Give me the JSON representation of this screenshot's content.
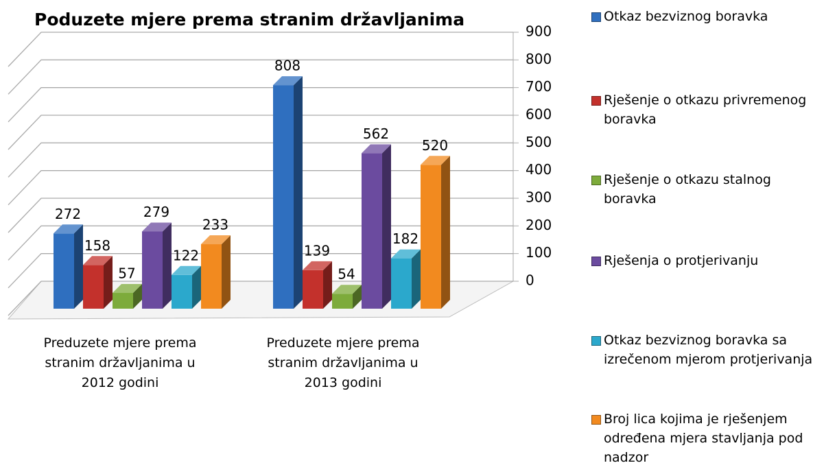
{
  "chart_data": {
    "type": "bar3d",
    "title": "Poduzete mjere prema stranim državljanima",
    "categories": [
      "Preduzete mjere prema stranim državljanima u 2012 godini",
      "Preduzete mjere prema stranim državljanima u 2013 godini"
    ],
    "series": [
      {
        "name": "Otkaz bezviznog boravka",
        "color": "#2f6fbf",
        "values": [
          272,
          808
        ]
      },
      {
        "name": "Rješenje o otkazu privremenog boravka",
        "color": "#c3312c",
        "values": [
          158,
          139
        ]
      },
      {
        "name": "Rješenje o otkazu stalnog boravka",
        "color": "#7dab3b",
        "values": [
          57,
          54
        ]
      },
      {
        "name": "Rješenja o protjerivanju",
        "color": "#6b4b9f",
        "values": [
          279,
          562
        ]
      },
      {
        "name": "Otkaz bezviznog boravka sa izrečenom mjerom protjerivanja",
        "color": "#2ba8cc",
        "values": [
          122,
          182
        ]
      },
      {
        "name": "Broj lica kojima je rješenjem određena mjera stavljanja pod nadzor",
        "color": "#f28a1f",
        "values": [
          233,
          520
        ]
      }
    ],
    "ylim": [
      0,
      900
    ],
    "yticks": [
      0,
      100,
      200,
      300,
      400,
      500,
      600,
      700,
      800,
      900
    ],
    "grid": true,
    "legend": "right"
  }
}
